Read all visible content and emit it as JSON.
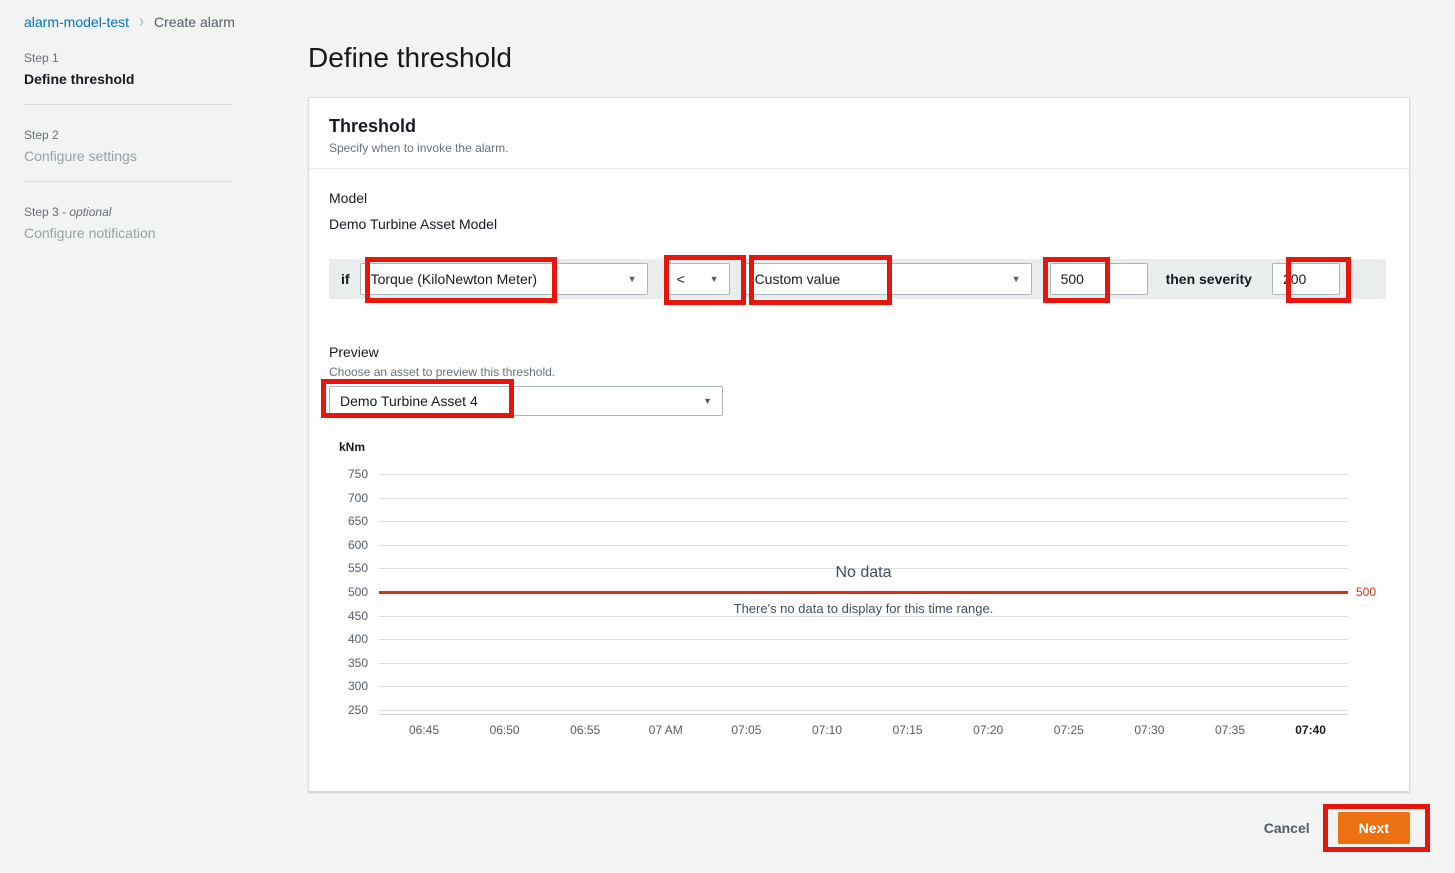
{
  "colors": {
    "accent_orange": "#ec7211",
    "link_blue": "#0073bb",
    "threshold_red": "#d13212",
    "annotation_red": "#e8150d",
    "page_background": "#f2f3f3",
    "rule_strip_gray": "#eaeded"
  },
  "icons": {
    "caret_down": "▼",
    "breadcrumb_chevron": "›"
  },
  "breadcrumb": {
    "items": [
      "alarm-model-test",
      "Create alarm"
    ]
  },
  "wizard_steps": [
    {
      "step": "Step 1",
      "title": "Define threshold"
    },
    {
      "step": "Step 2",
      "title": "Configure settings"
    },
    {
      "step": "Step 3",
      "optional_suffix": "- optional",
      "title": "Configure notification"
    }
  ],
  "page": {
    "title": "Define threshold"
  },
  "threshold_card": {
    "title": "Threshold",
    "description": "Specify when to invoke the alarm.",
    "model": {
      "label": "Model",
      "value": "Demo Turbine Asset Model"
    },
    "rule": {
      "if_label": "if",
      "property_select_value": "Torque (KiloNewton Meter)",
      "operator_select_value": "<",
      "value_type_select_value": "Custom value",
      "threshold_value": "500",
      "then_label": "then severity",
      "severity_value": "200"
    },
    "preview": {
      "label": "Preview",
      "description": "Choose an asset to preview this threshold.",
      "asset_select_value": "Demo Turbine Asset 4"
    }
  },
  "chart_data": {
    "type": "line",
    "title": "",
    "ylabel": "kNm",
    "unit_label": "kNm",
    "grid": true,
    "ylim": [
      250,
      775
    ],
    "y_ticks": [
      750,
      700,
      650,
      600,
      550,
      500,
      450,
      400,
      350,
      300,
      250
    ],
    "x_ticks": [
      "06:45",
      "06:50",
      "06:55",
      "07 AM",
      "07:05",
      "07:10",
      "07:15",
      "07:20",
      "07:25",
      "07:30",
      "07:35",
      "07:40"
    ],
    "bold_x_tick": "07:40",
    "series": [],
    "threshold": {
      "value": 500,
      "label": "500",
      "color": "#d13212"
    },
    "empty_state": {
      "title": "No data",
      "message": "There's no data to display for this time range."
    }
  },
  "footer": {
    "cancel_label": "Cancel",
    "next_label": "Next"
  }
}
